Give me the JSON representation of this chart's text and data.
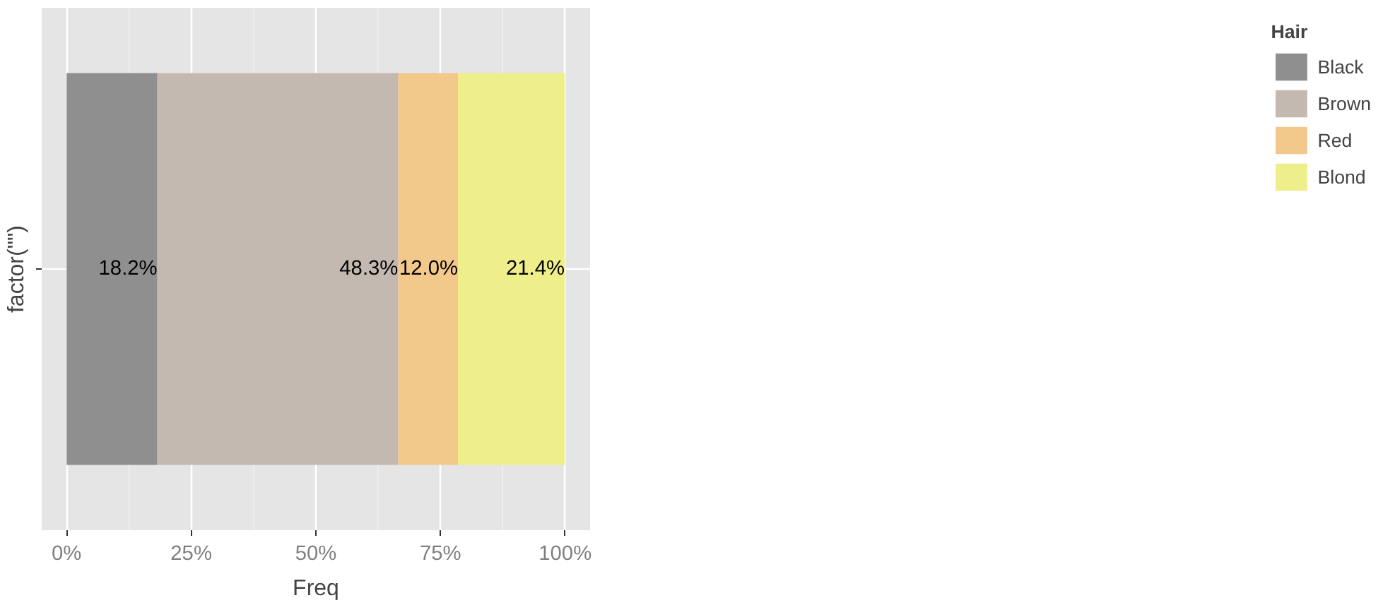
{
  "chart_data": {
    "type": "bar",
    "orientation": "horizontal",
    "stacked": true,
    "categories": [
      null
    ],
    "xlabel": "Freq",
    "ylabel": "factor(\"\")",
    "legend_title": "Hair",
    "legend": "right",
    "grid": true,
    "xlim": [
      -0.05,
      1.05
    ],
    "xticks": [
      {
        "value": 0,
        "label": "0%"
      },
      {
        "value": 0.25,
        "label": "25%"
      },
      {
        "value": 0.5,
        "label": "50%"
      },
      {
        "value": 0.75,
        "label": "75%"
      },
      {
        "value": 1,
        "label": "100%"
      }
    ],
    "series": [
      {
        "name": "Black",
        "color": "#8f8f8f",
        "values": [
          0.182
        ],
        "value_labels": [
          "18.2%"
        ]
      },
      {
        "name": "Brown",
        "color": "#c3b9b1",
        "values": [
          0.483
        ],
        "value_labels": [
          "48.3%"
        ]
      },
      {
        "name": "Red",
        "color": "#f2c98b",
        "values": [
          0.12
        ],
        "value_labels": [
          "12.0%"
        ]
      },
      {
        "name": "Blond",
        "color": "#eeee8a",
        "values": [
          0.214
        ],
        "value_labels": [
          "21.4%"
        ]
      }
    ]
  }
}
